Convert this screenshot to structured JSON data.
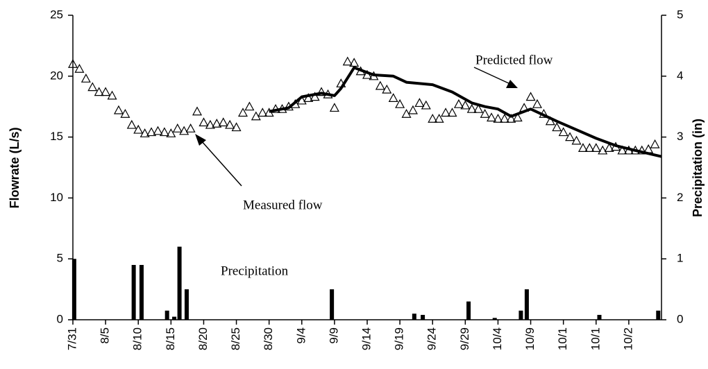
{
  "chart_data": {
    "type": "line",
    "y_label": "Flowrate (L/s)",
    "y2_label": "Precipitation (in)",
    "xlim": [
      0,
      90
    ],
    "ylim": [
      0,
      25
    ],
    "y2lim": [
      0,
      5
    ],
    "yticks": [
      0,
      5,
      10,
      15,
      20,
      25
    ],
    "y2ticks": [
      0,
      1,
      2,
      3,
      4,
      5
    ],
    "xticks": [
      {
        "value": 0,
        "label": "7/31"
      },
      {
        "value": 5,
        "label": "8/5"
      },
      {
        "value": 10,
        "label": "8/10"
      },
      {
        "value": 15,
        "label": "8/15"
      },
      {
        "value": 20,
        "label": "8/20"
      },
      {
        "value": 25,
        "label": "8/25"
      },
      {
        "value": 30,
        "label": "8/30"
      },
      {
        "value": 35,
        "label": "9/4"
      },
      {
        "value": 40,
        "label": "9/9"
      },
      {
        "value": 45,
        "label": "9/14"
      },
      {
        "value": 50,
        "label": "9/19"
      },
      {
        "value": 55,
        "label": "9/24"
      },
      {
        "value": 60,
        "label": "9/29"
      },
      {
        "value": 65,
        "label": "10/4"
      },
      {
        "value": 70,
        "label": "10/9"
      },
      {
        "value": 75,
        "label": "10/1"
      },
      {
        "value": 80,
        "label": "10/1"
      },
      {
        "value": 85,
        "label": "10/2"
      }
    ],
    "annotations": [
      "Predicted flow",
      "Measured flow",
      "Precipitation"
    ],
    "series": [
      {
        "name": "Measured flow",
        "type": "scatter",
        "color": "#000000",
        "x": [
          0,
          1,
          2,
          3,
          4,
          5,
          6,
          7,
          8,
          9,
          10,
          11,
          12,
          13,
          14,
          15,
          16,
          17,
          18,
          19,
          20,
          21,
          22,
          23,
          24,
          25,
          26,
          27,
          28,
          29,
          30,
          31,
          32,
          33,
          34,
          35,
          36,
          37,
          38,
          39,
          40,
          41,
          42,
          43,
          44,
          45,
          46,
          47,
          48,
          49,
          50,
          51,
          52,
          53,
          54,
          55,
          56,
          57,
          58,
          59,
          60,
          61,
          62,
          63,
          64,
          65,
          66,
          67,
          68,
          69,
          70,
          71,
          72,
          73,
          74,
          75,
          76,
          77,
          78,
          79,
          80,
          81,
          82,
          83,
          84,
          85,
          86,
          87,
          88,
          89
        ],
        "values": [
          21.0,
          20.6,
          19.8,
          19.1,
          18.7,
          18.7,
          18.4,
          17.2,
          16.9,
          16.0,
          15.6,
          15.3,
          15.4,
          15.5,
          15.4,
          15.3,
          15.7,
          15.5,
          15.7,
          17.1,
          16.2,
          16.0,
          16.1,
          16.2,
          16.0,
          15.8,
          17.0,
          17.5,
          16.7,
          17.0,
          17.0,
          17.3,
          17.3,
          17.5,
          17.7,
          18.0,
          18.2,
          18.3,
          18.7,
          18.5,
          17.4,
          19.4,
          21.2,
          21.1,
          20.4,
          20.1,
          20.0,
          19.2,
          18.9,
          18.2,
          17.7,
          16.9,
          17.2,
          17.8,
          17.6,
          16.5,
          16.5,
          17.0,
          17.0,
          17.7,
          17.6,
          17.3,
          17.3,
          16.9,
          16.6,
          16.5,
          16.5,
          16.5,
          16.6,
          17.4,
          18.3,
          17.7,
          16.9,
          16.3,
          15.8,
          15.4,
          15.0,
          14.7,
          14.1,
          14.1,
          14.1,
          13.9,
          14.1,
          14.2,
          13.9,
          13.9,
          13.9,
          13.9,
          14.0,
          14.4
        ]
      },
      {
        "name": "Predicted flow",
        "type": "line",
        "color": "#000000",
        "x": [
          30,
          32,
          33,
          35,
          38,
          40,
          41,
          43,
          46,
          49,
          51,
          55,
          58,
          61,
          63,
          65,
          67,
          69,
          70,
          74,
          77,
          80,
          83,
          86,
          90
        ],
        "values": [
          17.1,
          17.3,
          17.4,
          18.3,
          18.6,
          18.4,
          19.0,
          20.7,
          20.1,
          20.0,
          19.5,
          19.3,
          18.7,
          17.8,
          17.5,
          17.3,
          16.7,
          17.1,
          17.3,
          16.3,
          15.6,
          14.9,
          14.3,
          13.9,
          13.4
        ]
      },
      {
        "name": "Precipitation",
        "type": "bar",
        "axis": "y2",
        "color": "#000000",
        "x": [
          0.2,
          9.3,
          10.5,
          14.4,
          15.5,
          16.3,
          17.4,
          39.6,
          52.2,
          53.5,
          60.5,
          64.5,
          68.5,
          69.4,
          80.5,
          89.5
        ],
        "values": [
          1.0,
          0.9,
          0.9,
          0.15,
          0.05,
          1.2,
          0.5,
          0.5,
          0.1,
          0.08,
          0.3,
          0.03,
          0.15,
          0.5,
          0.08,
          0.15
        ]
      }
    ]
  }
}
